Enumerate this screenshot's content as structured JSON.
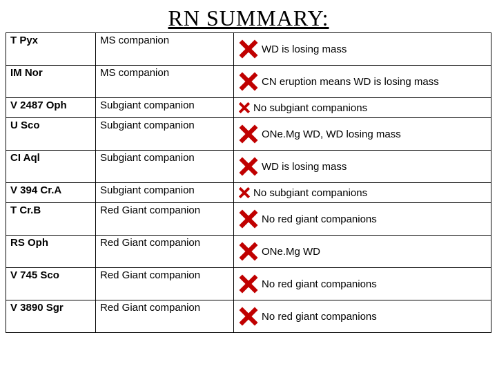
{
  "title": "RN SUMMARY:",
  "cross_color": "#c00000",
  "rows": [
    {
      "name": "T Pyx",
      "companion": "MS companion",
      "note": "WD is losing mass",
      "cross_size": "big"
    },
    {
      "name": "IM Nor",
      "companion": "MS companion",
      "note": "CN eruption means WD is losing mass",
      "cross_size": "big"
    },
    {
      "name": "V 2487 Oph",
      "companion": "Subgiant companion",
      "note": "No subgiant companions",
      "cross_size": "small"
    },
    {
      "name": "U Sco",
      "companion": "Subgiant companion",
      "note": "ONe.Mg WD, WD losing mass",
      "cross_size": "big"
    },
    {
      "name": "CI Aql",
      "companion": "Subgiant companion",
      "note": "WD is losing mass",
      "cross_size": "big"
    },
    {
      "name": "V 394 Cr.A",
      "companion": "Subgiant companion",
      "note": "No subgiant companions",
      "cross_size": "small"
    },
    {
      "name": "T Cr.B",
      "companion": "Red Giant companion",
      "note": "No red giant companions",
      "cross_size": "big"
    },
    {
      "name": "RS Oph",
      "companion": "Red Giant companion",
      "note": "ONe.Mg WD",
      "cross_size": "big"
    },
    {
      "name": "V 745 Sco",
      "companion": "Red Giant companion",
      "note": "No red giant companions",
      "cross_size": "big"
    },
    {
      "name": "V 3890 Sgr",
      "companion": "Red Giant companion",
      "note": "No red giant companions",
      "cross_size": "big"
    }
  ]
}
